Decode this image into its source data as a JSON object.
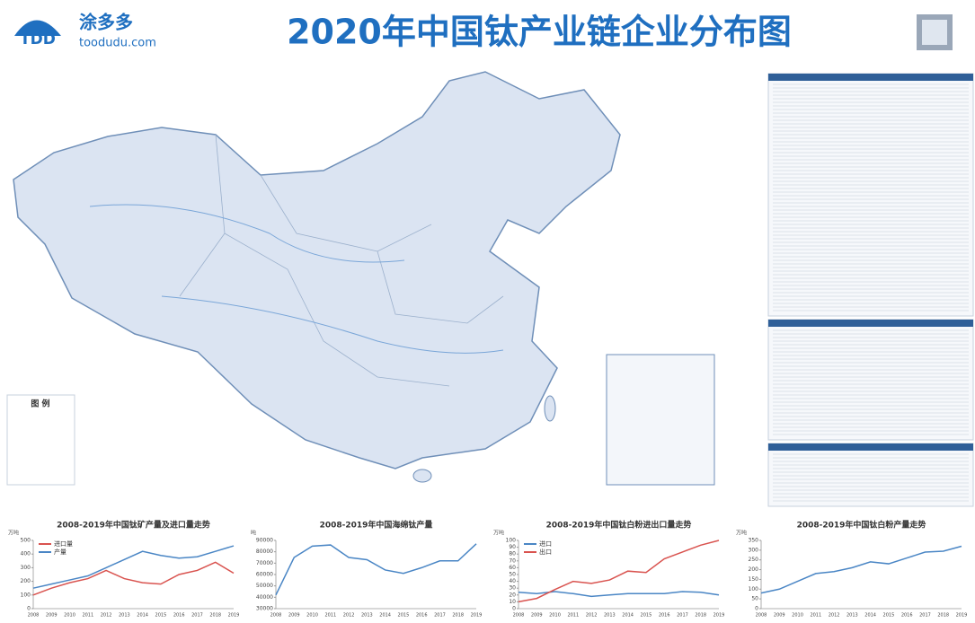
{
  "header": {
    "logo": "TDD",
    "brand": "涂多多",
    "site": "toodudu.com",
    "title": "2020年中国钛产业链企业分布图"
  },
  "map": {
    "legend_title": "图 例"
  },
  "chart_data": [
    {
      "type": "line",
      "title": "2008-2019年中国钛矿产量及进口量走势",
      "y_label": "万吨",
      "categories": [
        "2008",
        "2009",
        "2010",
        "2011",
        "2012",
        "2013",
        "2014",
        "2015",
        "2016",
        "2017",
        "2018",
        "2019"
      ],
      "series": [
        {
          "name": "进口量",
          "color": "#d9534f",
          "values": [
            100,
            150,
            190,
            220,
            280,
            220,
            190,
            180,
            250,
            280,
            340,
            260
          ]
        },
        {
          "name": "产量",
          "color": "#4a86c5",
          "values": [
            150,
            180,
            210,
            240,
            300,
            360,
            420,
            390,
            370,
            380,
            420,
            460
          ]
        }
      ],
      "ylim": [
        0,
        500
      ],
      "yticks": [
        0,
        100,
        200,
        300,
        400,
        500
      ],
      "grid": false
    },
    {
      "type": "line",
      "title": "2008-2019年中国海绵钛产量",
      "y_label": "吨",
      "categories": [
        "2008",
        "2009",
        "2010",
        "2011",
        "2012",
        "2013",
        "2014",
        "2015",
        "2016",
        "2017",
        "2018",
        "2019"
      ],
      "series": [
        {
          "name": null,
          "color": "#4a86c5",
          "values": [
            42000,
            75000,
            85000,
            86000,
            75000,
            73000,
            64000,
            61000,
            66000,
            72000,
            72000,
            87000
          ]
        }
      ],
      "ylim": [
        30000,
        90000
      ],
      "yticks": [
        30000,
        40000,
        50000,
        60000,
        70000,
        80000,
        90000
      ],
      "grid": false
    },
    {
      "type": "line",
      "title": "2008-2019年中国钛白粉进出口量走势",
      "y_label": "万吨",
      "categories": [
        "2008",
        "2009",
        "2010",
        "2011",
        "2012",
        "2013",
        "2014",
        "2015",
        "2016",
        "2017",
        "2018",
        "2019"
      ],
      "series": [
        {
          "name": "进口",
          "color": "#4a86c5",
          "values": [
            24,
            22,
            25,
            22,
            18,
            20,
            22,
            22,
            22,
            25,
            24,
            20
          ]
        },
        {
          "name": "出口",
          "color": "#d9534f",
          "values": [
            10,
            15,
            28,
            40,
            37,
            42,
            55,
            53,
            73,
            83,
            93,
            100
          ]
        }
      ],
      "ylim": [
        0,
        100
      ],
      "yticks": [
        0,
        10,
        20,
        30,
        40,
        50,
        60,
        70,
        80,
        90,
        100
      ],
      "grid": false
    },
    {
      "type": "line",
      "title": "2008-2019年中国钛白粉产量走势",
      "y_label": "万吨",
      "categories": [
        "2008",
        "2009",
        "2010",
        "2011",
        "2012",
        "2013",
        "2014",
        "2015",
        "2016",
        "2017",
        "2018",
        "2019"
      ],
      "series": [
        {
          "name": null,
          "color": "#4a86c5",
          "values": [
            80,
            100,
            140,
            180,
            190,
            210,
            240,
            230,
            260,
            290,
            295,
            320
          ]
        }
      ],
      "ylim": [
        0,
        350
      ],
      "yticks": [
        0,
        50,
        100,
        150,
        200,
        250,
        300,
        350
      ],
      "grid": false
    }
  ]
}
